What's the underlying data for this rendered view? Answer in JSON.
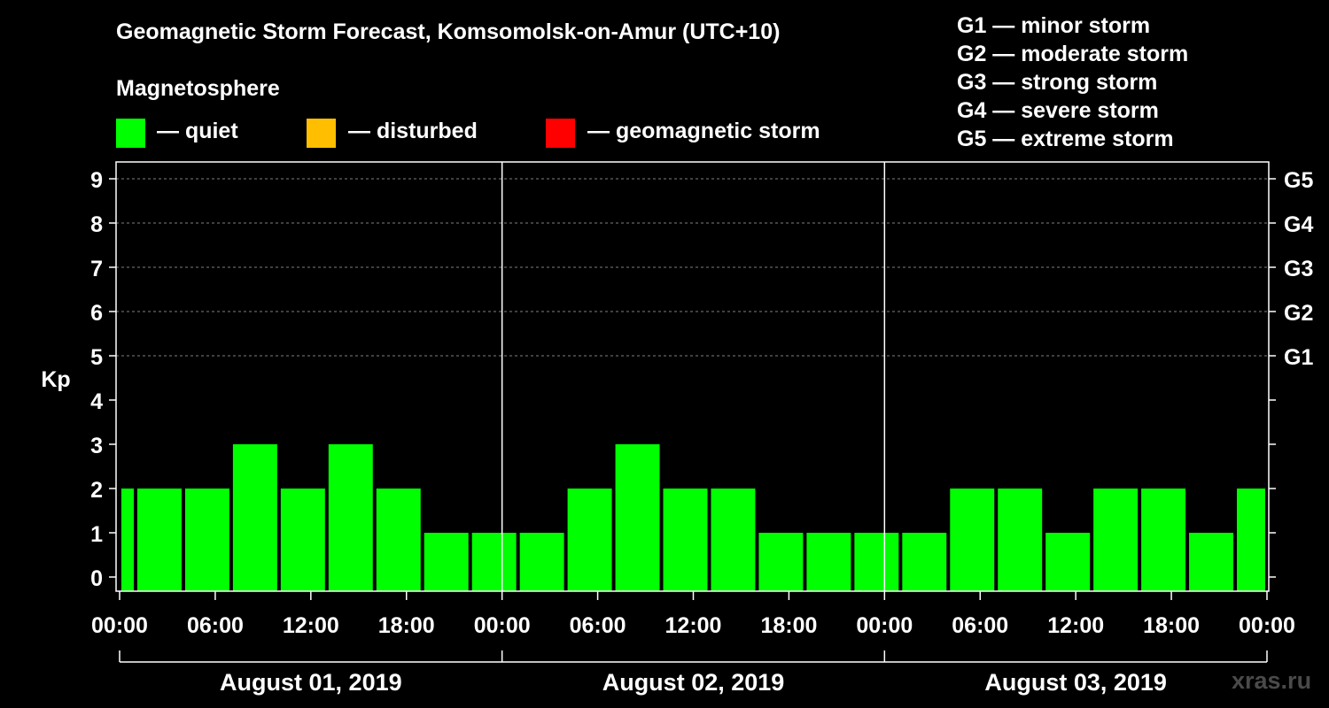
{
  "chart_data": {
    "type": "bar",
    "title": "Geomagnetic Storm Forecast, Komsomolsk-on-Amur (UTC+10)",
    "ylabel": "Kp",
    "ylim": [
      0,
      9
    ],
    "yticks": [
      "0",
      "1",
      "2",
      "3",
      "4",
      "5",
      "6",
      "7",
      "8",
      "9"
    ],
    "right_ticks": [
      {
        "kp": 5,
        "label": "G1"
      },
      {
        "kp": 6,
        "label": "G2"
      },
      {
        "kp": 7,
        "label": "G3"
      },
      {
        "kp": 8,
        "label": "G4"
      },
      {
        "kp": 9,
        "label": "G5"
      }
    ],
    "x_ticks": [
      "00:00",
      "06:00",
      "12:00",
      "18:00",
      "00:00",
      "06:00",
      "12:00",
      "18:00",
      "00:00",
      "06:00",
      "12:00",
      "18:00",
      "00:00"
    ],
    "x_tick_hours": [
      0,
      6,
      12,
      18,
      24,
      30,
      36,
      42,
      48,
      54,
      60,
      66,
      72
    ],
    "days": [
      "August 01, 2019",
      "August 02, 2019",
      "August 03, 2019"
    ],
    "day_boundaries_hours": [
      24,
      48
    ],
    "bars": [
      {
        "start": 0,
        "end": 1,
        "kp": 2
      },
      {
        "start": 1,
        "end": 4,
        "kp": 2
      },
      {
        "start": 4,
        "end": 7,
        "kp": 2
      },
      {
        "start": 7,
        "end": 10,
        "kp": 3
      },
      {
        "start": 10,
        "end": 13,
        "kp": 2
      },
      {
        "start": 13,
        "end": 16,
        "kp": 3
      },
      {
        "start": 16,
        "end": 19,
        "kp": 2
      },
      {
        "start": 19,
        "end": 22,
        "kp": 1
      },
      {
        "start": 22,
        "end": 25,
        "kp": 1
      },
      {
        "start": 25,
        "end": 28,
        "kp": 1
      },
      {
        "start": 28,
        "end": 31,
        "kp": 2
      },
      {
        "start": 31,
        "end": 34,
        "kp": 3
      },
      {
        "start": 34,
        "end": 37,
        "kp": 2
      },
      {
        "start": 37,
        "end": 40,
        "kp": 2
      },
      {
        "start": 40,
        "end": 43,
        "kp": 1
      },
      {
        "start": 43,
        "end": 46,
        "kp": 1
      },
      {
        "start": 46,
        "end": 49,
        "kp": 1
      },
      {
        "start": 49,
        "end": 52,
        "kp": 1
      },
      {
        "start": 52,
        "end": 55,
        "kp": 2
      },
      {
        "start": 55,
        "end": 58,
        "kp": 2
      },
      {
        "start": 58,
        "end": 61,
        "kp": 1
      },
      {
        "start": 61,
        "end": 64,
        "kp": 2
      },
      {
        "start": 64,
        "end": 67,
        "kp": 2
      },
      {
        "start": 67,
        "end": 70,
        "kp": 1
      },
      {
        "start": 70,
        "end": 72,
        "kp": 2
      }
    ],
    "colors": {
      "quiet": "#00ff00",
      "disturbed": "#ffbf00",
      "storm": "#ff0000",
      "grid": "#808080",
      "axis": "#ffffff"
    }
  },
  "legend": {
    "heading": "Magnetosphere",
    "items": [
      {
        "label": "— quiet",
        "color": "#00ff00"
      },
      {
        "label": "— disturbed",
        "color": "#ffbf00"
      },
      {
        "label": "— geomagnetic storm",
        "color": "#ff0000"
      }
    ]
  },
  "g_scale": [
    "G1 — minor storm",
    "G2 — moderate storm",
    "G3 — strong storm",
    "G4 — severe storm",
    "G5 — extreme storm"
  ],
  "watermark": "xras.ru"
}
